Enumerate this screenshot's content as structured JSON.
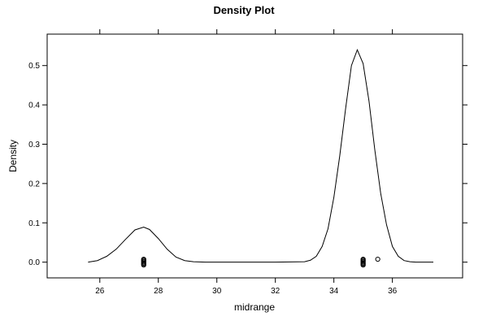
{
  "chart_data": {
    "type": "line",
    "title": "Density Plot",
    "xlabel": "midrange",
    "ylabel": "Density",
    "xlim": [
      24.2,
      38.4
    ],
    "ylim": [
      -0.04,
      0.58
    ],
    "xticks": [
      26,
      28,
      30,
      32,
      34,
      36
    ],
    "xtick_labels": [
      "26",
      "28",
      "30",
      "32",
      "34",
      "36"
    ],
    "yticks": [
      0.0,
      0.1,
      0.2,
      0.3,
      0.4,
      0.5
    ],
    "ytick_labels": [
      "0.0",
      "0.1",
      "0.2",
      "0.3",
      "0.4",
      "0.5"
    ],
    "grid": false,
    "colors": {
      "line": "#000000",
      "points": "#000000",
      "background": "#ffffff"
    },
    "density": {
      "x": [
        25.6,
        25.92,
        26.24,
        26.56,
        26.88,
        27.2,
        27.5,
        27.7,
        28.0,
        28.3,
        28.6,
        28.9,
        29.2,
        29.6,
        30.0,
        31.0,
        32.0,
        33.0,
        33.2,
        33.4,
        33.6,
        33.8,
        34.0,
        34.2,
        34.4,
        34.6,
        34.8,
        35.0,
        35.2,
        35.4,
        35.6,
        35.8,
        36.0,
        36.2,
        36.4,
        36.6,
        36.8,
        37.0,
        37.4
      ],
      "y": [
        0.0,
        0.004,
        0.015,
        0.033,
        0.058,
        0.082,
        0.089,
        0.083,
        0.06,
        0.033,
        0.013,
        0.004,
        0.001,
        0.0,
        0.0,
        0.0,
        0.0,
        0.001,
        0.005,
        0.015,
        0.04,
        0.085,
        0.165,
        0.27,
        0.39,
        0.5,
        0.54,
        0.505,
        0.41,
        0.285,
        0.175,
        0.095,
        0.04,
        0.015,
        0.004,
        0.001,
        0.0,
        0.0,
        0.0
      ]
    },
    "points": {
      "x": [
        27.5,
        27.5,
        27.5,
        27.5,
        27.5,
        27.5,
        27.5,
        35.0,
        35.0,
        35.0,
        35.0,
        35.0,
        35.0,
        35.0,
        35.5
      ],
      "y": [
        0.0,
        0.0,
        0.0,
        0.0,
        0.0,
        0.0,
        0.0,
        0.0,
        0.0,
        0.0,
        0.0,
        0.0,
        0.0,
        0.0,
        0.0
      ]
    }
  }
}
